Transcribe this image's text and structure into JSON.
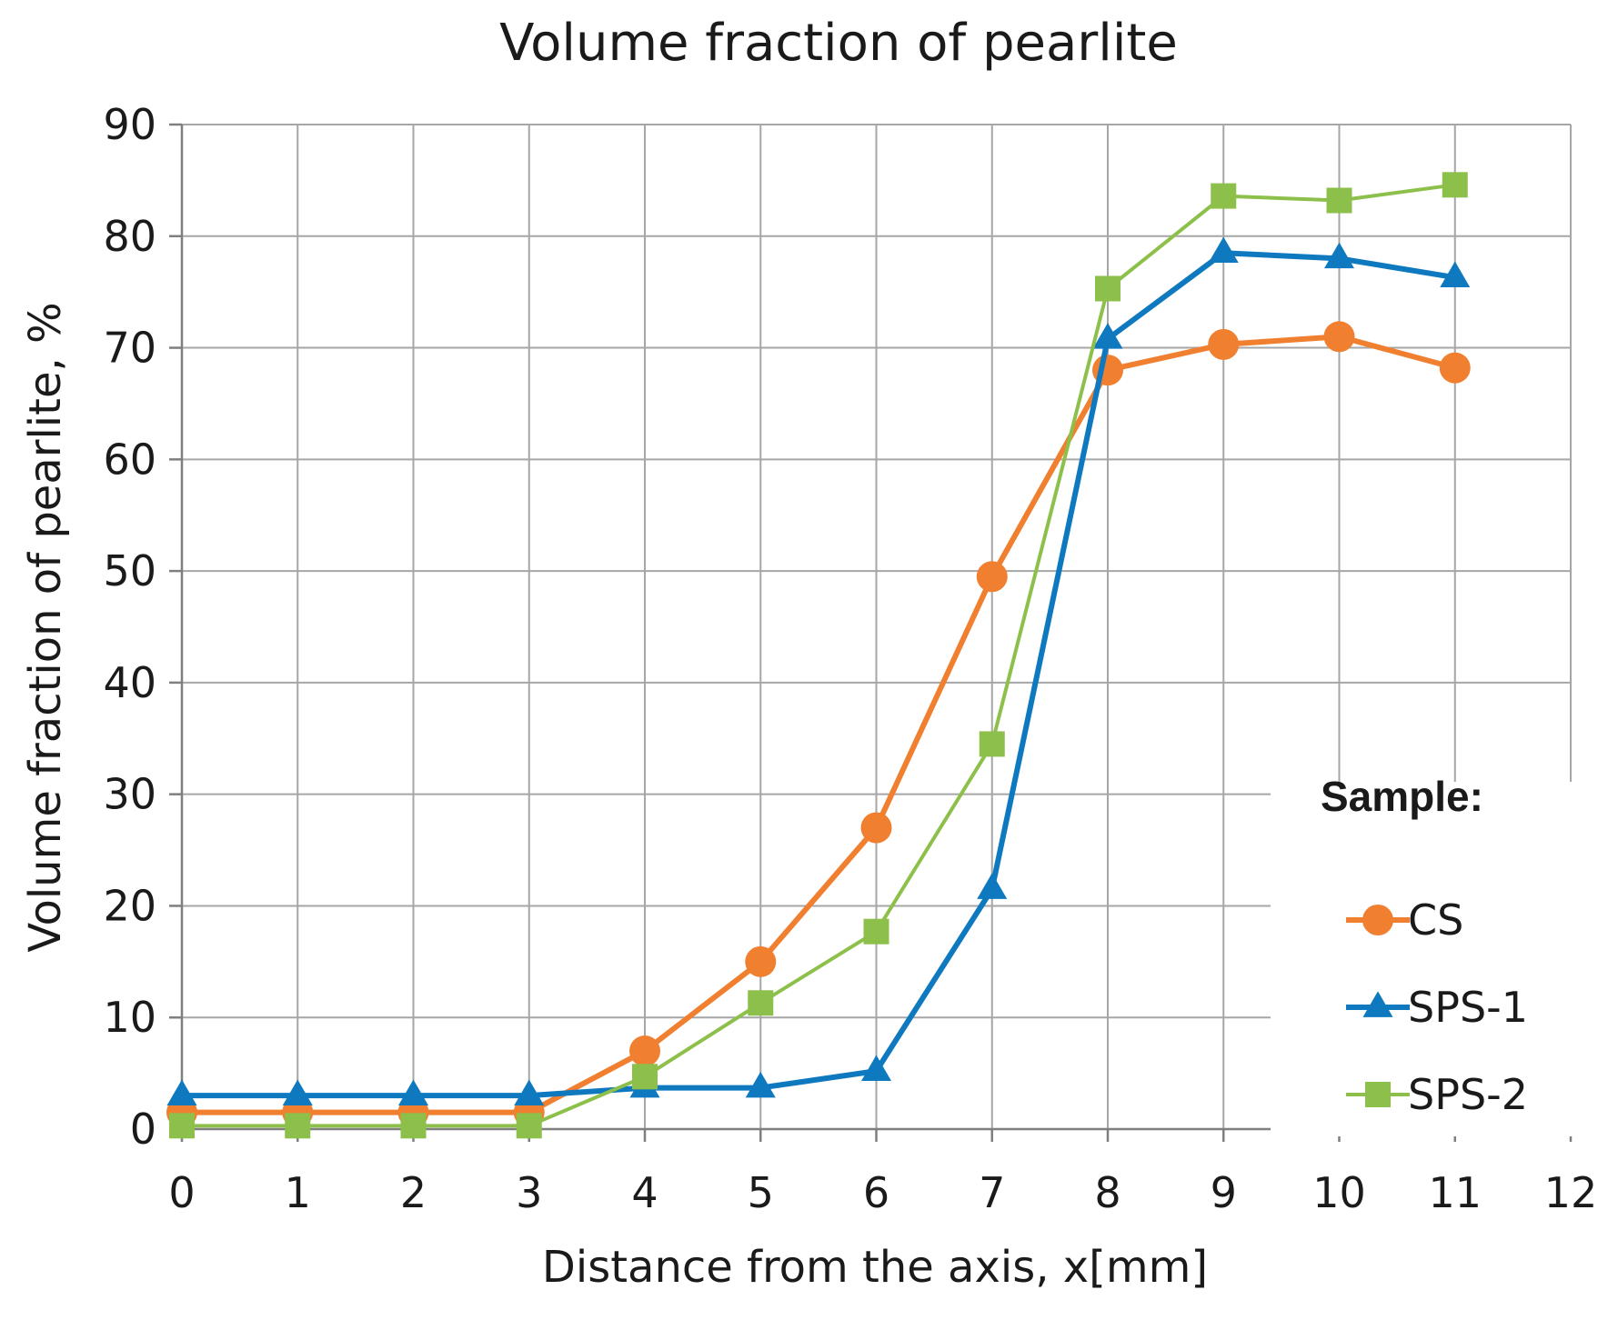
{
  "chart_data": {
    "type": "line",
    "title": "Volume fraction of pearlite",
    "xlabel": "Distance from the axis, x[mm]",
    "ylabel": "Volume fraction of pearlite, %",
    "xlim": [
      0,
      12
    ],
    "ylim": [
      0,
      90
    ],
    "xticks": [
      "0",
      "1",
      "2",
      "3",
      "4",
      "5",
      "6",
      "7",
      "8",
      "9",
      "10",
      "11",
      "12"
    ],
    "yticks": [
      "0",
      "10",
      "20",
      "30",
      "40",
      "50",
      "60",
      "70",
      "80",
      "90"
    ],
    "grid": true,
    "x": [
      0,
      1,
      2,
      3,
      4,
      5,
      6,
      7,
      8,
      9,
      10,
      11
    ],
    "legend": {
      "title": "Sample:",
      "placement": "right"
    },
    "series": [
      {
        "name": "CS",
        "color": "#f07f30",
        "marker": "circle",
        "values": [
          1.5,
          1.5,
          1.5,
          1.5,
          7,
          15,
          27,
          49.5,
          68,
          70.3,
          71,
          68.2
        ]
      },
      {
        "name": "SPS-1",
        "color": "#0f79c0",
        "marker": "triangle",
        "values": [
          3,
          3,
          3,
          3,
          3.7,
          3.7,
          5.2,
          21.5,
          70.8,
          78.5,
          78,
          76.3
        ]
      },
      {
        "name": "SPS-2",
        "color": "#8dc04a",
        "marker": "square",
        "values": [
          0.3,
          0.3,
          0.3,
          0.3,
          4.7,
          11.3,
          17.7,
          34.5,
          75.3,
          83.6,
          83.2,
          84.6
        ]
      }
    ]
  }
}
